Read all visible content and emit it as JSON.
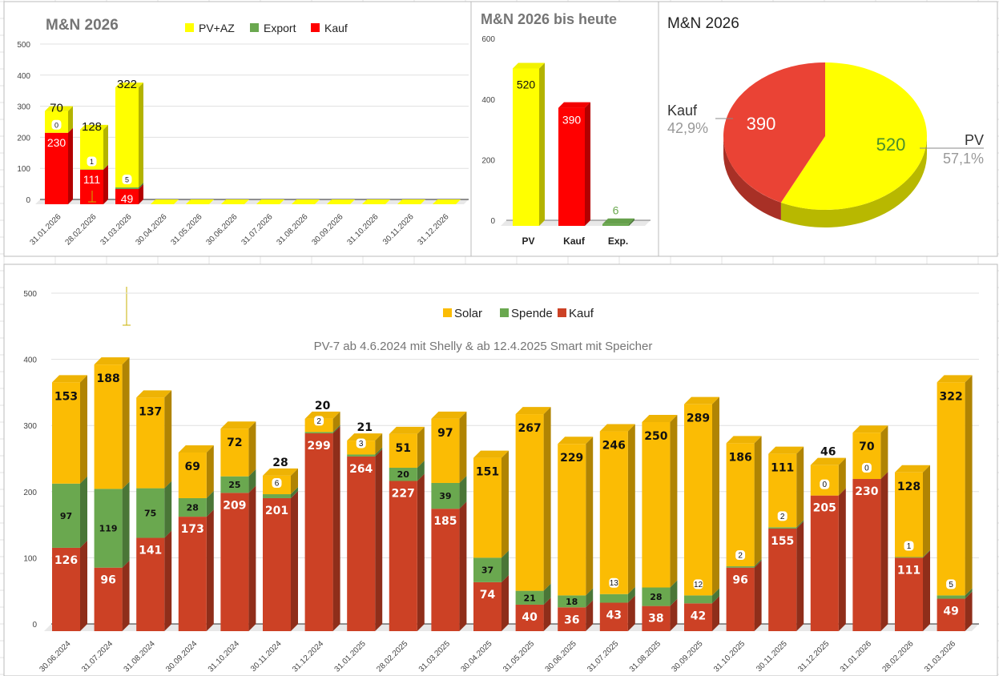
{
  "chart_data": [
    {
      "type": "bar",
      "stacked": true,
      "three_d": true,
      "title": "M&N 2026",
      "legend_position": "top",
      "categories": [
        "31.01.2026",
        "28.02.2026",
        "31.03.2026",
        "30.04.2026",
        "31.05.2026",
        "30.06.2026",
        "31.07.2026",
        "31.08.2026",
        "30.09.2026",
        "31.10.2026",
        "30.11.2026",
        "31.12.2026"
      ],
      "series": [
        {
          "name": "PV+AZ",
          "color": "#ffff00",
          "values": [
            70,
            128,
            322,
            null,
            null,
            null,
            null,
            null,
            null,
            null,
            null,
            null
          ]
        },
        {
          "name": "Export",
          "color": "#6aa84f",
          "values": [
            0,
            1,
            5,
            null,
            null,
            null,
            null,
            null,
            null,
            null,
            null,
            null
          ]
        },
        {
          "name": "Kauf",
          "color": "#ff0000",
          "values": [
            230,
            111,
            49,
            null,
            null,
            null,
            null,
            null,
            null,
            null,
            null,
            null
          ]
        }
      ],
      "yticks": [
        "0",
        "100",
        "200",
        "300",
        "400",
        "500"
      ],
      "ylim": [
        0,
        500
      ],
      "grid": true
    },
    {
      "type": "bar",
      "three_d": true,
      "title": "M&N 2026 bis heute",
      "categories": [
        "PV",
        "Kauf",
        "Exp."
      ],
      "values": [
        520,
        390,
        6
      ],
      "colors": [
        "#ffff00",
        "#ff0000",
        "#6aa84f"
      ],
      "yticks": [
        "0",
        "200",
        "400",
        "600"
      ],
      "ylim": [
        0,
        600
      ]
    },
    {
      "type": "pie",
      "three_d": true,
      "title": "M&N 2026",
      "slices": [
        {
          "label": "PV",
          "value": 520,
          "percent": "57,1%",
          "color": "#ffff00"
        },
        {
          "label": "Kauf",
          "value": 390,
          "percent": "42,9%",
          "color": "#ea4335"
        }
      ],
      "value_labels": [
        "520",
        "390"
      ]
    },
    {
      "type": "bar",
      "stacked": true,
      "three_d": true,
      "subtitle": "PV-7 ab 4.6.2024 mit Shelly & ab 12.4.2025 Smart mit Speicher",
      "legend_position": "top",
      "categories": [
        "30.06.2024",
        "31.07.2024",
        "31.08.2024",
        "30.09.2024",
        "31.10.2024",
        "30.11.2024",
        "31.12.2024",
        "31.01.2025",
        "28.02.2025",
        "31.03.2025",
        "30.04.2025",
        "31.05.2025",
        "30.06.2025",
        "31.07.2025",
        "31.08.2025",
        "30.09.2025",
        "31.10.2025",
        "30.11.2025",
        "31.12.2025",
        "31.01.2026",
        "28.02.2026",
        "31.03.2026"
      ],
      "series": [
        {
          "name": "Solar",
          "color": "#fbbc04",
          "values": [
            153,
            188,
            137,
            69,
            72,
            28,
            20,
            21,
            51,
            97,
            151,
            267,
            229,
            246,
            250,
            289,
            186,
            111,
            46,
            70,
            128,
            322
          ]
        },
        {
          "name": "Spende",
          "color": "#6aa84f",
          "values": [
            97,
            119,
            75,
            28,
            25,
            6,
            2,
            3,
            20,
            39,
            37,
            21,
            18,
            13,
            28,
            12,
            2,
            2,
            0,
            0,
            1,
            5
          ]
        },
        {
          "name": "Kauf",
          "color": "#cc4125",
          "values": [
            126,
            96,
            141,
            173,
            209,
            201,
            299,
            264,
            227,
            185,
            74,
            40,
            36,
            43,
            38,
            42,
            96,
            155,
            205,
            230,
            111,
            49
          ]
        }
      ],
      "yticks": [
        "0",
        "100",
        "200",
        "300",
        "400",
        "500"
      ],
      "ylim": [
        0,
        500
      ],
      "grid": true
    }
  ]
}
